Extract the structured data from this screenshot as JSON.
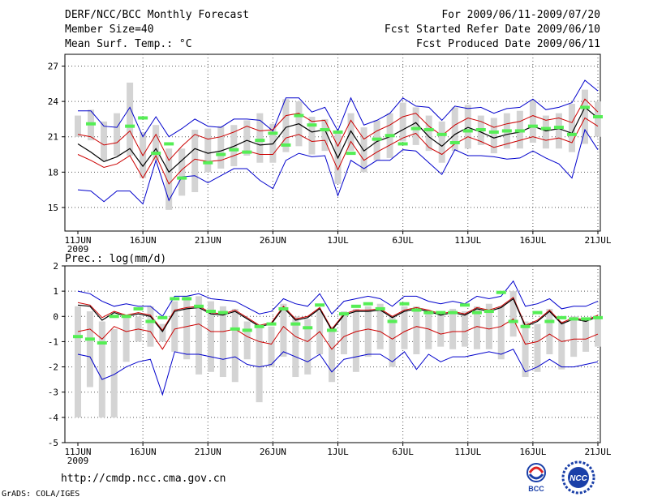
{
  "header": {
    "title": "DERF/NCC/BCC Monthly Forecast",
    "member": "Member Size=40",
    "variable": "Mean Surf. Temp.: °C",
    "period": "For 2009/06/11-2009/07/20",
    "refer": "Fcst Started Refer Date 2009/06/10",
    "produced": "Fcst Produced Date 2009/06/11"
  },
  "footer": {
    "url": "http://cmdp.ncc.cma.gov.cn",
    "grads": "GrADS: COLA/IGES",
    "logo1": "BCC",
    "logo2": "NCC"
  },
  "colors": {
    "blue": "#0000cc",
    "red": "#cc0000",
    "black": "#000000",
    "green": "#55ee55",
    "box": "#d4d4d4"
  },
  "chart_data": [
    {
      "type": "line",
      "title": "Mean Surf. Temp.: °C",
      "x_labels": [
        "11JUN",
        "16JUN",
        "21JUN",
        "26JUN",
        "1JUL",
        "6JUL",
        "11JUL",
        "16JUL",
        "21JUL"
      ],
      "x_sublabel": "2009",
      "ylim": [
        13,
        28
      ],
      "yticks": [
        15,
        18,
        21,
        24,
        27
      ],
      "mean": [
        20.4,
        19.7,
        18.9,
        19.3,
        20.0,
        18.5,
        20.0,
        18.0,
        19.0,
        20.0,
        19.6,
        19.8,
        20.2,
        20.7,
        20.3,
        20.4,
        21.8,
        22.1,
        21.4,
        21.6,
        19.2,
        21.5,
        19.8,
        20.6,
        21.0,
        21.6,
        22.2,
        21.0,
        20.2,
        21.2,
        21.8,
        21.4,
        20.9,
        21.2,
        21.4,
        21.9,
        21.5,
        21.7,
        21.3,
        23.5,
        22.6
      ],
      "upper_red": [
        21.2,
        21.0,
        20.3,
        20.5,
        21.5,
        19.4,
        21.2,
        19.0,
        20.2,
        21.2,
        20.8,
        21.0,
        21.4,
        21.9,
        21.5,
        21.6,
        22.8,
        23.0,
        22.3,
        22.4,
        20.2,
        22.4,
        20.8,
        21.5,
        22.0,
        22.7,
        23.0,
        21.9,
        21.1,
        22.0,
        22.6,
        22.3,
        21.8,
        22.1,
        22.3,
        22.8,
        22.4,
        22.6,
        22.2,
        24.2,
        23.1
      ],
      "lower_red": [
        19.5,
        19.0,
        18.4,
        18.7,
        19.4,
        17.5,
        19.4,
        17.0,
        18.2,
        19.1,
        18.9,
        19.0,
        19.4,
        19.8,
        19.5,
        19.5,
        20.9,
        21.2,
        20.6,
        20.7,
        18.2,
        20.6,
        19.0,
        19.7,
        20.3,
        20.9,
        21.3,
        20.1,
        19.5,
        20.4,
        21.0,
        20.6,
        20.1,
        20.4,
        20.7,
        21.0,
        20.7,
        20.9,
        20.5,
        22.6,
        21.9
      ],
      "upper_blue": [
        23.2,
        23.2,
        21.9,
        21.8,
        23.5,
        21.0,
        22.7,
        21.0,
        21.7,
        22.5,
        21.9,
        21.8,
        22.5,
        22.5,
        22.4,
        21.5,
        24.3,
        24.3,
        23.1,
        23.5,
        21.5,
        24.3,
        22.0,
        22.4,
        23.0,
        24.3,
        23.6,
        23.5,
        22.4,
        23.6,
        23.4,
        23.5,
        23.0,
        23.4,
        23.5,
        24.2,
        23.3,
        23.5,
        23.9,
        25.8,
        24.9
      ],
      "lower_blue": [
        16.5,
        16.4,
        15.5,
        16.4,
        16.4,
        15.3,
        19.0,
        15.6,
        17.6,
        17.7,
        17.1,
        17.7,
        18.3,
        18.3,
        17.3,
        16.6,
        19.0,
        19.6,
        19.3,
        19.4,
        16.0,
        19.0,
        18.3,
        19.0,
        19.0,
        19.9,
        19.8,
        18.8,
        17.8,
        19.9,
        19.4,
        19.4,
        19.3,
        19.1,
        19.2,
        19.8,
        19.2,
        18.7,
        17.5,
        21.6,
        19.9
      ],
      "box_high": [
        22.8,
        23.3,
        22.3,
        23.0,
        25.6,
        21.4,
        22.0,
        20.0,
        20.0,
        21.6,
        21.7,
        21.9,
        22.0,
        22.4,
        23.0,
        22.1,
        24.2,
        24.0,
        22.7,
        22.5,
        21.5,
        23.0,
        21.8,
        22.4,
        23.0,
        23.9,
        23.5,
        22.8,
        22.3,
        23.5,
        23.7,
        22.8,
        22.6,
        23.0,
        23.2,
        24.1,
        22.8,
        23.0,
        23.8,
        25.0,
        24.0
      ],
      "box_low": [
        21.0,
        20.7,
        19.0,
        19.4,
        19.4,
        17.5,
        19.0,
        14.8,
        16.0,
        16.3,
        18.0,
        18.3,
        18.5,
        19.4,
        18.8,
        18.8,
        19.7,
        20.2,
        19.5,
        19.8,
        17.0,
        19.8,
        18.0,
        19.0,
        19.2,
        20.6,
        20.3,
        19.8,
        18.8,
        19.8,
        20.0,
        20.3,
        19.6,
        20.0,
        20.0,
        20.5,
        20.0,
        20.0,
        19.7,
        20.4,
        21.0
      ],
      "obs": [
        null,
        22.1,
        null,
        null,
        21.9,
        22.6,
        19.6,
        20.4,
        17.5,
        null,
        18.8,
        19.5,
        19.9,
        19.7,
        20.7,
        21.3,
        20.3,
        22.8,
        22.0,
        21.6,
        21.4,
        19.6,
        null,
        20.8,
        21.1,
        20.4,
        21.7,
        21.6,
        21.2,
        20.5,
        21.5,
        21.6,
        21.4,
        21.5,
        21.5,
        21.9,
        21.7,
        21.8,
        21.2,
        23.5,
        22.7
      ]
    },
    {
      "type": "line",
      "title": "Prec.: log(mm/d)",
      "x_labels": [
        "11JUN",
        "16JUN",
        "21JUN",
        "26JUN",
        "1JUL",
        "6JUL",
        "11JUL",
        "16JUL",
        "21JUL"
      ],
      "x_sublabel": "2009",
      "ylim": [
        -5,
        2
      ],
      "yticks": [
        -5,
        -4,
        -3,
        -2,
        -1,
        0,
        1,
        2
      ],
      "mean": [
        0.45,
        0.4,
        -0.15,
        0.15,
        0.0,
        0.1,
        0.0,
        -0.6,
        0.2,
        0.3,
        0.35,
        0.1,
        0.05,
        0.2,
        -0.1,
        -0.4,
        -0.3,
        0.35,
        -0.15,
        -0.05,
        0.3,
        -0.55,
        0.05,
        0.2,
        0.2,
        0.25,
        -0.05,
        0.2,
        0.3,
        0.2,
        0.05,
        0.15,
        0.05,
        0.3,
        0.2,
        0.35,
        0.7,
        -0.4,
        -0.2,
        0.2,
        -0.3,
        -0.1,
        -0.2,
        0.0
      ],
      "upper_red": [
        0.55,
        0.45,
        -0.05,
        0.2,
        0.05,
        0.15,
        0.05,
        -0.55,
        0.25,
        0.35,
        0.4,
        0.15,
        0.1,
        0.25,
        -0.05,
        -0.35,
        -0.25,
        0.4,
        -0.1,
        0.0,
        0.35,
        -0.5,
        0.1,
        0.25,
        0.25,
        0.3,
        0.0,
        0.25,
        0.35,
        0.25,
        0.1,
        0.2,
        0.1,
        0.35,
        0.25,
        0.4,
        0.75,
        -0.35,
        -0.15,
        0.25,
        -0.25,
        -0.05,
        -0.15,
        0.05
      ],
      "lower_red": [
        -0.6,
        -0.5,
        -0.9,
        -0.4,
        -0.6,
        -0.5,
        -0.6,
        -1.3,
        -0.5,
        -0.4,
        -0.3,
        -0.6,
        -0.6,
        -0.5,
        -0.8,
        -1.0,
        -1.1,
        -0.4,
        -0.8,
        -1.0,
        -0.6,
        -1.3,
        -0.8,
        -0.6,
        -0.5,
        -0.6,
        -0.9,
        -0.6,
        -0.4,
        -0.5,
        -0.7,
        -0.6,
        -0.6,
        -0.4,
        -0.5,
        -0.4,
        -0.1,
        -1.1,
        -1.0,
        -0.7,
        -1.0,
        -0.9,
        -0.9,
        -0.7
      ],
      "upper_blue": [
        1.0,
        0.9,
        0.6,
        0.4,
        0.5,
        0.4,
        0.4,
        0.0,
        0.8,
        0.8,
        0.9,
        0.7,
        0.65,
        0.6,
        0.35,
        0.1,
        0.2,
        0.7,
        0.5,
        0.4,
        0.9,
        0.1,
        0.6,
        0.7,
        0.8,
        0.7,
        0.4,
        0.8,
        0.8,
        0.6,
        0.5,
        0.6,
        0.5,
        0.8,
        0.7,
        0.8,
        1.4,
        0.4,
        0.5,
        0.7,
        0.3,
        0.4,
        0.4,
        0.6
      ],
      "lower_blue": [
        -1.5,
        -1.6,
        -2.5,
        -2.3,
        -2.0,
        -1.8,
        -1.7,
        -3.1,
        -1.4,
        -1.5,
        -1.5,
        -1.6,
        -1.7,
        -1.6,
        -1.9,
        -2.0,
        -1.9,
        -1.4,
        -1.6,
        -1.8,
        -1.5,
        -2.2,
        -1.7,
        -1.6,
        -1.5,
        -1.5,
        -1.8,
        -1.4,
        -2.1,
        -1.5,
        -1.8,
        -1.6,
        -1.6,
        -1.5,
        -1.4,
        -1.5,
        -1.3,
        -2.2,
        -2.0,
        -1.7,
        -2.0,
        -2.0,
        -1.9,
        -1.8
      ],
      "box_high": [
        0.4,
        0.2,
        -0.2,
        -0.5,
        0.0,
        0.0,
        0.4,
        -0.3,
        0.6,
        0.8,
        0.8,
        0.6,
        0.4,
        0.3,
        -0.2,
        -0.4,
        -0.4,
        0.5,
        0.0,
        -0.1,
        0.2,
        -0.4,
        0.2,
        0.3,
        0.4,
        0.5,
        0.0,
        0.4,
        0.4,
        0.2,
        0.1,
        0.3,
        0.2,
        0.4,
        0.5,
        0.4,
        1.0,
        -0.2,
        -0.3,
        0.3,
        -0.2,
        0.0,
        -0.1,
        0.0
      ],
      "box_low": [
        -4.0,
        -2.8,
        -4.0,
        -4.0,
        -1.8,
        -1.0,
        -1.2,
        -1.0,
        -1.4,
        -1.7,
        -2.3,
        -2.2,
        -2.4,
        -2.6,
        -1.7,
        -3.4,
        -2.0,
        -1.6,
        -2.4,
        -2.3,
        -1.5,
        -2.6,
        -1.5,
        -2.2,
        -1.6,
        -1.3,
        -2.0,
        -1.3,
        -1.5,
        -1.3,
        -1.2,
        -1.3,
        -1.2,
        -1.3,
        -1.3,
        -1.7,
        -0.8,
        -2.4,
        -2.2,
        -1.5,
        -2.1,
        -1.6,
        -1.4,
        -1.2
      ],
      "obs": [
        -0.8,
        -0.9,
        -1.05,
        0.0,
        0.0,
        0.3,
        -0.2,
        -0.05,
        0.7,
        0.7,
        0.4,
        0.2,
        0.15,
        -0.5,
        -0.55,
        -0.4,
        -0.3,
        0.3,
        -0.3,
        -0.45,
        0.45,
        -0.55,
        0.1,
        0.4,
        0.5,
        0.3,
        -0.2,
        0.5,
        0.25,
        0.15,
        0.15,
        0.15,
        0.45,
        0.15,
        0.2,
        0.95,
        -0.2,
        -0.4,
        0.15,
        -0.2,
        -0.05,
        -0.1,
        -0.1,
        -0.05
      ]
    }
  ]
}
